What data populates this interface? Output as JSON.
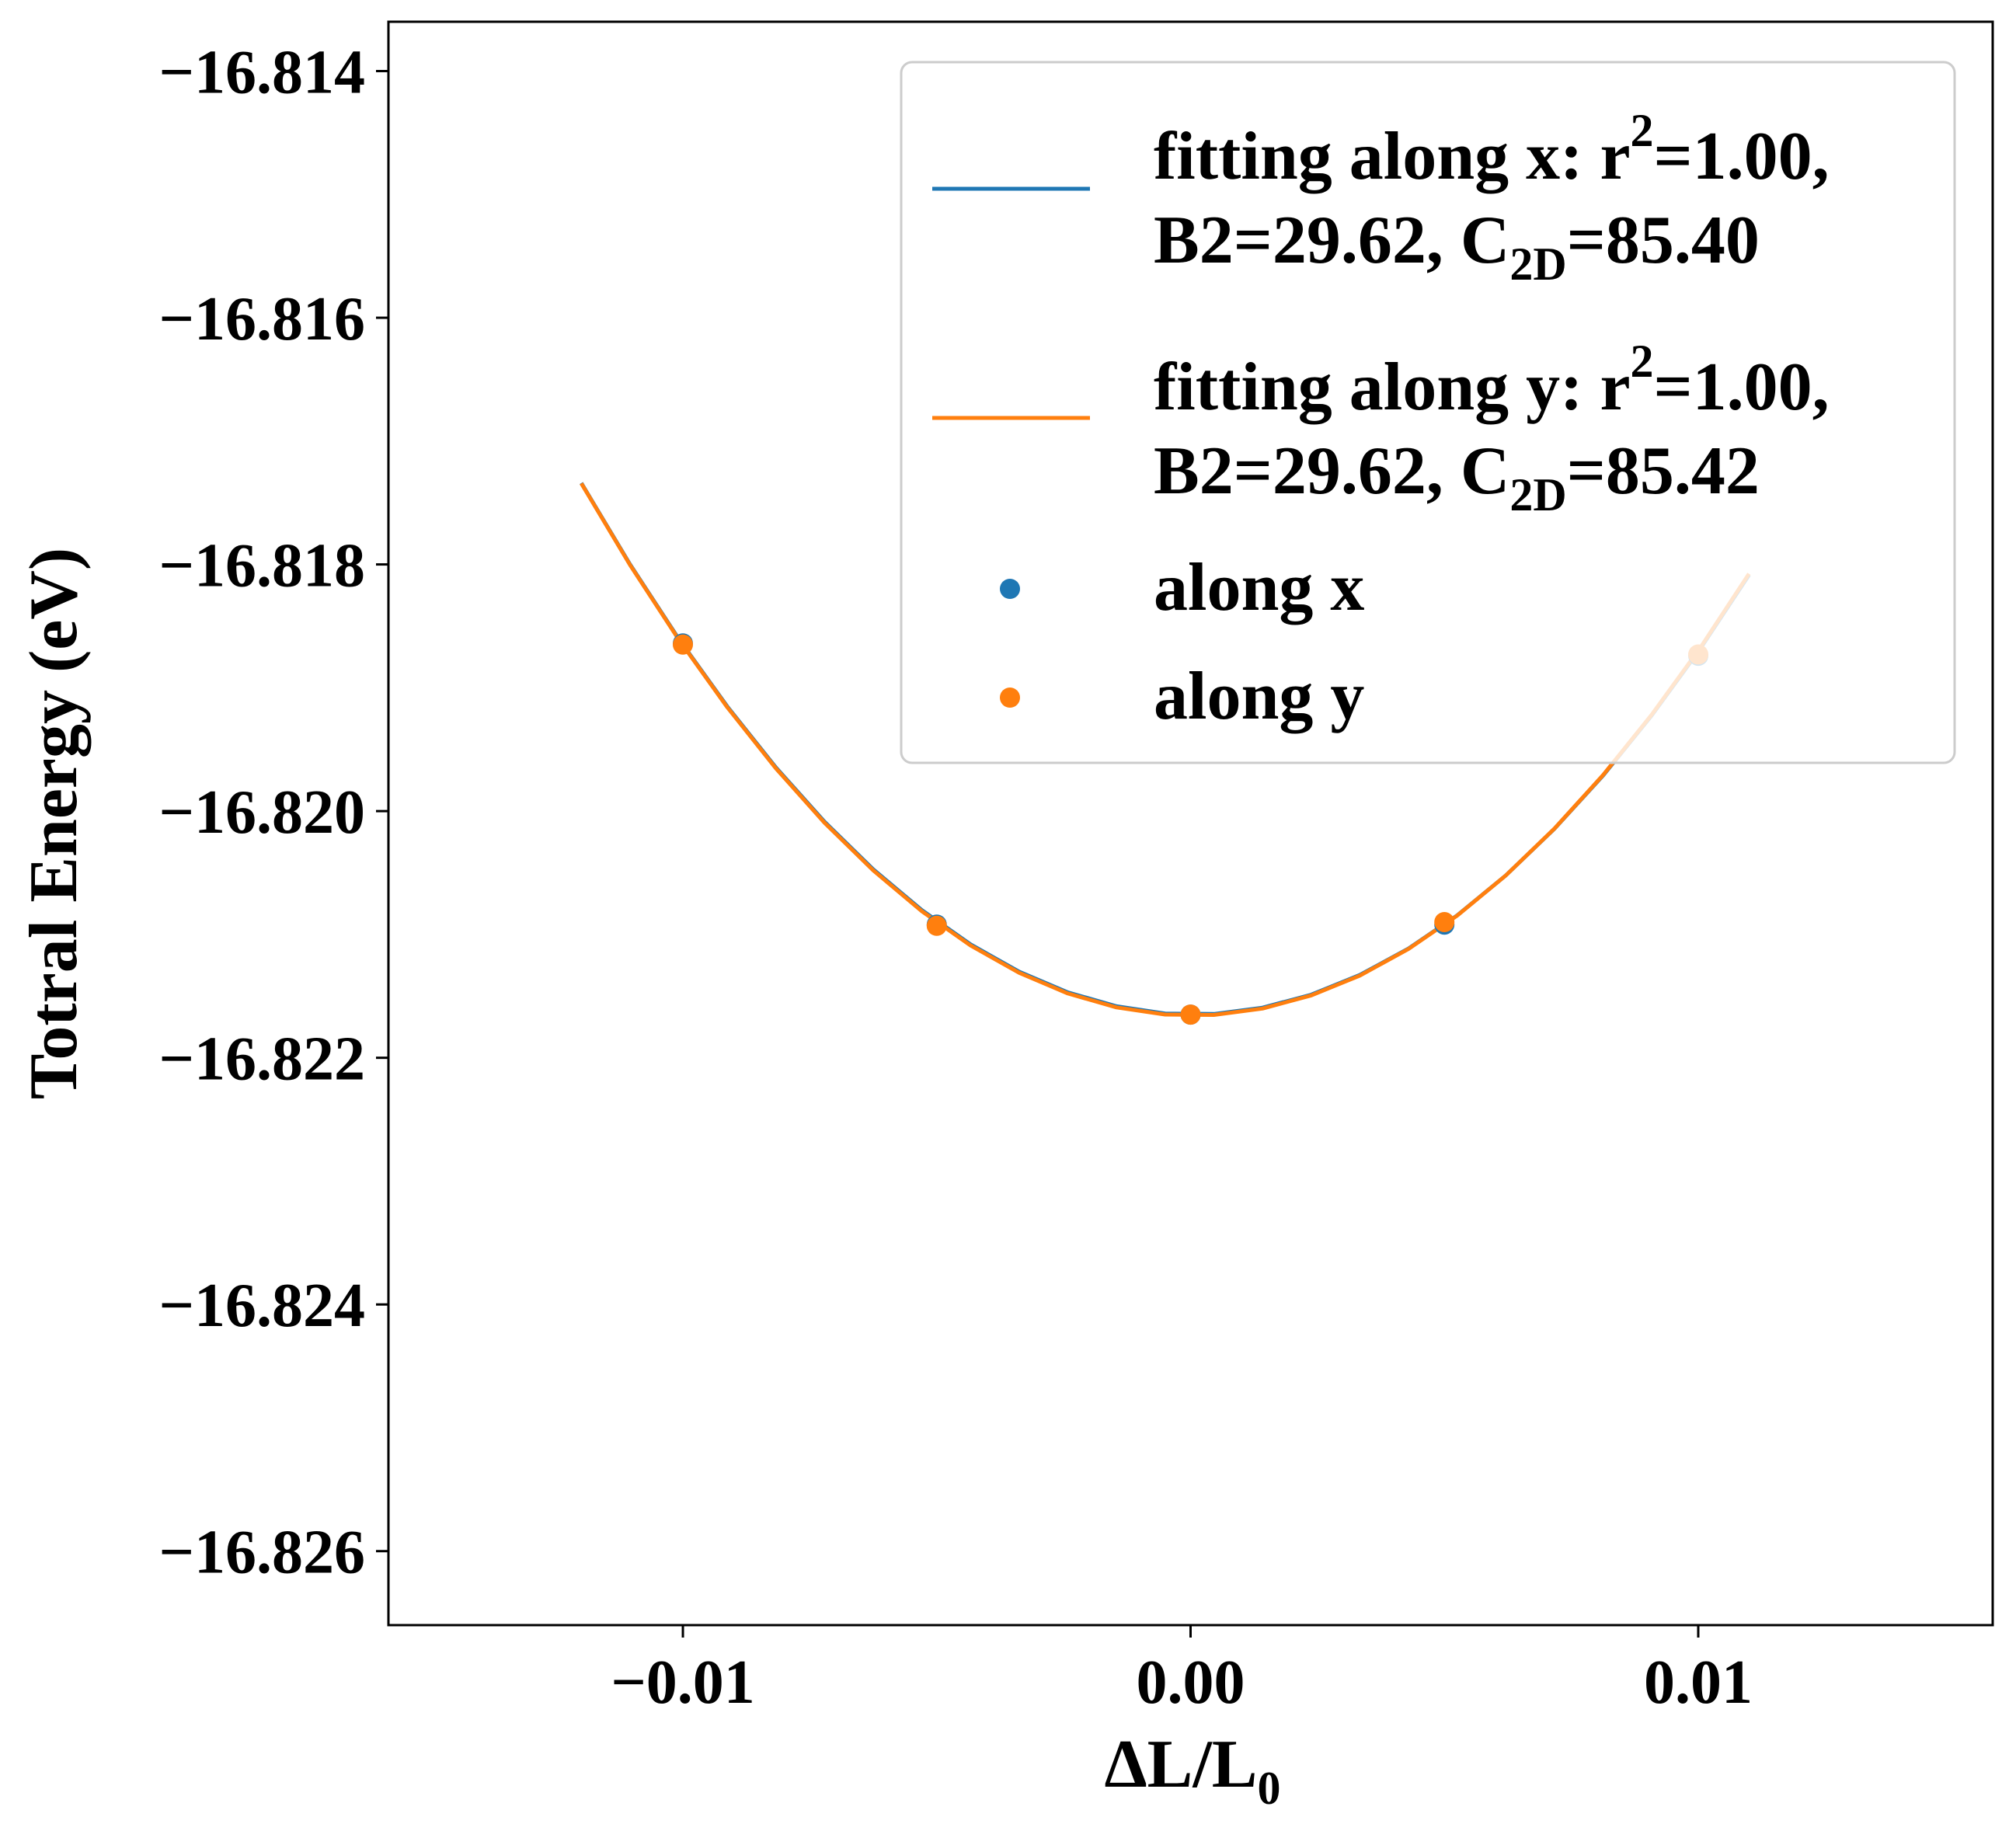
{
  "chart_data": {
    "type": "line",
    "xlabel": "ΔL/L",
    "xlabel_sub": "0",
    "ylabel": "Totral Energy (eV)",
    "xlim": [
      -0.0158,
      0.0158
    ],
    "ylim": [
      -16.8266,
      -16.8136
    ],
    "x_ticks": [
      -0.01,
      0.0,
      0.01
    ],
    "x_tick_labels": [
      "−0.01",
      "0.00",
      "0.01"
    ],
    "y_ticks": [
      -16.814,
      -16.816,
      -16.818,
      -16.82,
      -16.822,
      -16.824,
      -16.826
    ],
    "y_tick_labels": [
      "−16.814",
      "−16.816",
      "−16.818",
      "−16.820",
      "−16.822",
      "−16.824",
      "−16.826"
    ],
    "grid": false,
    "legend_position": "upper-right",
    "fit_range": [
      -0.012,
      0.011
    ],
    "series": [
      {
        "kind": "fit-line",
        "color": "#1f77b4",
        "legend_line1": "fitting along x: r",
        "legend_sup": "2",
        "legend_line1_end": "=1.00,",
        "legend_line2_a": "B2=29.62, C",
        "legend_line2_sub": "2D",
        "legend_line2_b": "=85.40",
        "fit_points": {
          "x": [
            -0.012,
            -0.01,
            -0.005,
            0.0,
            0.005,
            0.01,
            0.011
          ],
          "y": [
            -16.81734,
            -16.81864,
            -16.82092,
            -16.82165,
            -16.82089,
            -16.81874,
            -16.81807
          ]
        }
      },
      {
        "kind": "fit-line",
        "color": "#ff7f0e",
        "legend_line1": "fitting along y: r",
        "legend_sup": "2",
        "legend_line1_end": "=1.00,",
        "legend_line2_a": "B2=29.62, C",
        "legend_line2_sub": "2D",
        "legend_line2_b": "=85.42",
        "fit_points": {
          "x": [
            -0.012,
            -0.01,
            -0.005,
            0.0,
            0.005,
            0.01,
            0.011
          ],
          "y": [
            -16.81734,
            -16.81865,
            -16.82093,
            -16.82165,
            -16.8209,
            -16.81873,
            -16.81806
          ]
        }
      },
      {
        "kind": "scatter",
        "name": "along x",
        "color": "#1f77b4",
        "x": [
          -0.01,
          -0.005,
          0.0,
          0.005,
          0.01
        ],
        "y": [
          -16.81864,
          -16.82092,
          -16.82165,
          -16.82092,
          -16.81874
        ]
      },
      {
        "kind": "scatter",
        "name": "along y",
        "color": "#ff7f0e",
        "x": [
          -0.01,
          -0.005,
          0.0,
          0.005,
          0.01
        ],
        "y": [
          -16.81865,
          -16.82093,
          -16.82165,
          -16.8209,
          -16.81873
        ]
      }
    ]
  }
}
